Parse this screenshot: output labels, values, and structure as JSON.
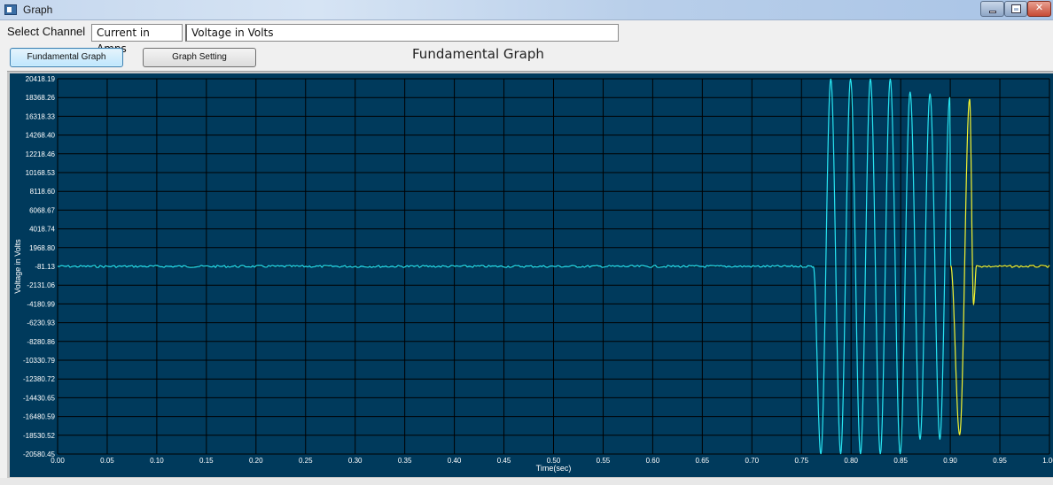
{
  "window": {
    "title": "Graph",
    "controls": [
      "minimize-icon",
      "maximize-icon",
      "close-icon"
    ]
  },
  "channel": {
    "label": "Select Channel",
    "options": [
      "Current in Amps",
      "Voltage in Volts"
    ],
    "selected": "Voltage in Volts"
  },
  "toolbar": {
    "fundamental_label": "Fundamental Graph",
    "graph_setting_label": "Graph Setting"
  },
  "heading": "Fundamental Graph",
  "colors": {
    "plot_bg": "#003a5c",
    "grid": "#000000",
    "series_cyan": "#27e3f0",
    "series_yellow": "#f2f230",
    "axis_text": "#ffffff"
  },
  "chart_data": {
    "type": "line",
    "title": "",
    "xlabel": "Time(sec)",
    "ylabel": "Voltage in Volts",
    "xlim": [
      0.0,
      1.0
    ],
    "ylim": [
      -20580.45,
      20418.19
    ],
    "grid": true,
    "x_ticks": [
      "0.00",
      "0.05",
      "0.10",
      "0.15",
      "0.20",
      "0.25",
      "0.30",
      "0.35",
      "0.40",
      "0.45",
      "0.50",
      "0.55",
      "0.60",
      "0.65",
      "0.70",
      "0.75",
      "0.80",
      "0.85",
      "0.90",
      "0.95",
      "1.00"
    ],
    "y_ticks": [
      "20418.19",
      "18368.26",
      "16318.33",
      "14268.40",
      "12218.46",
      "10168.53",
      "8118.60",
      "6068.67",
      "4018.74",
      "1968.80",
      "-81.13",
      "-2131.06",
      "-4180.99",
      "-6230.93",
      "-8280.86",
      "-10330.79",
      "-12380.72",
      "-14430.65",
      "-16480.59",
      "-18530.52",
      "-20580.45"
    ],
    "series": [
      {
        "color": "#27e3f0",
        "x": [
          0.0,
          0.76,
          0.762,
          0.7695,
          0.7795,
          0.7895,
          0.7995,
          0.8095,
          0.8195,
          0.8295,
          0.8395,
          0.8495,
          0.8595,
          0.8695,
          0.8795,
          0.8895,
          0.8995,
          0.9005
        ],
        "y": [
          -81.13,
          -81.13,
          -81.13,
          -20580.45,
          20418.19,
          -20580.45,
          20418.19,
          -20580.45,
          20418.19,
          -20580.45,
          20418.19,
          -20580.45,
          19000,
          -19000,
          18800,
          -19000,
          18400,
          0
        ]
      },
      {
        "color": "#f2f230",
        "x": [
          0.9005,
          0.9095,
          0.9195,
          0.9235,
          0.9265,
          0.93,
          1.0
        ],
        "y": [
          0,
          -18500,
          18200,
          -4200,
          0,
          -81.13,
          -81.13
        ]
      }
    ]
  }
}
